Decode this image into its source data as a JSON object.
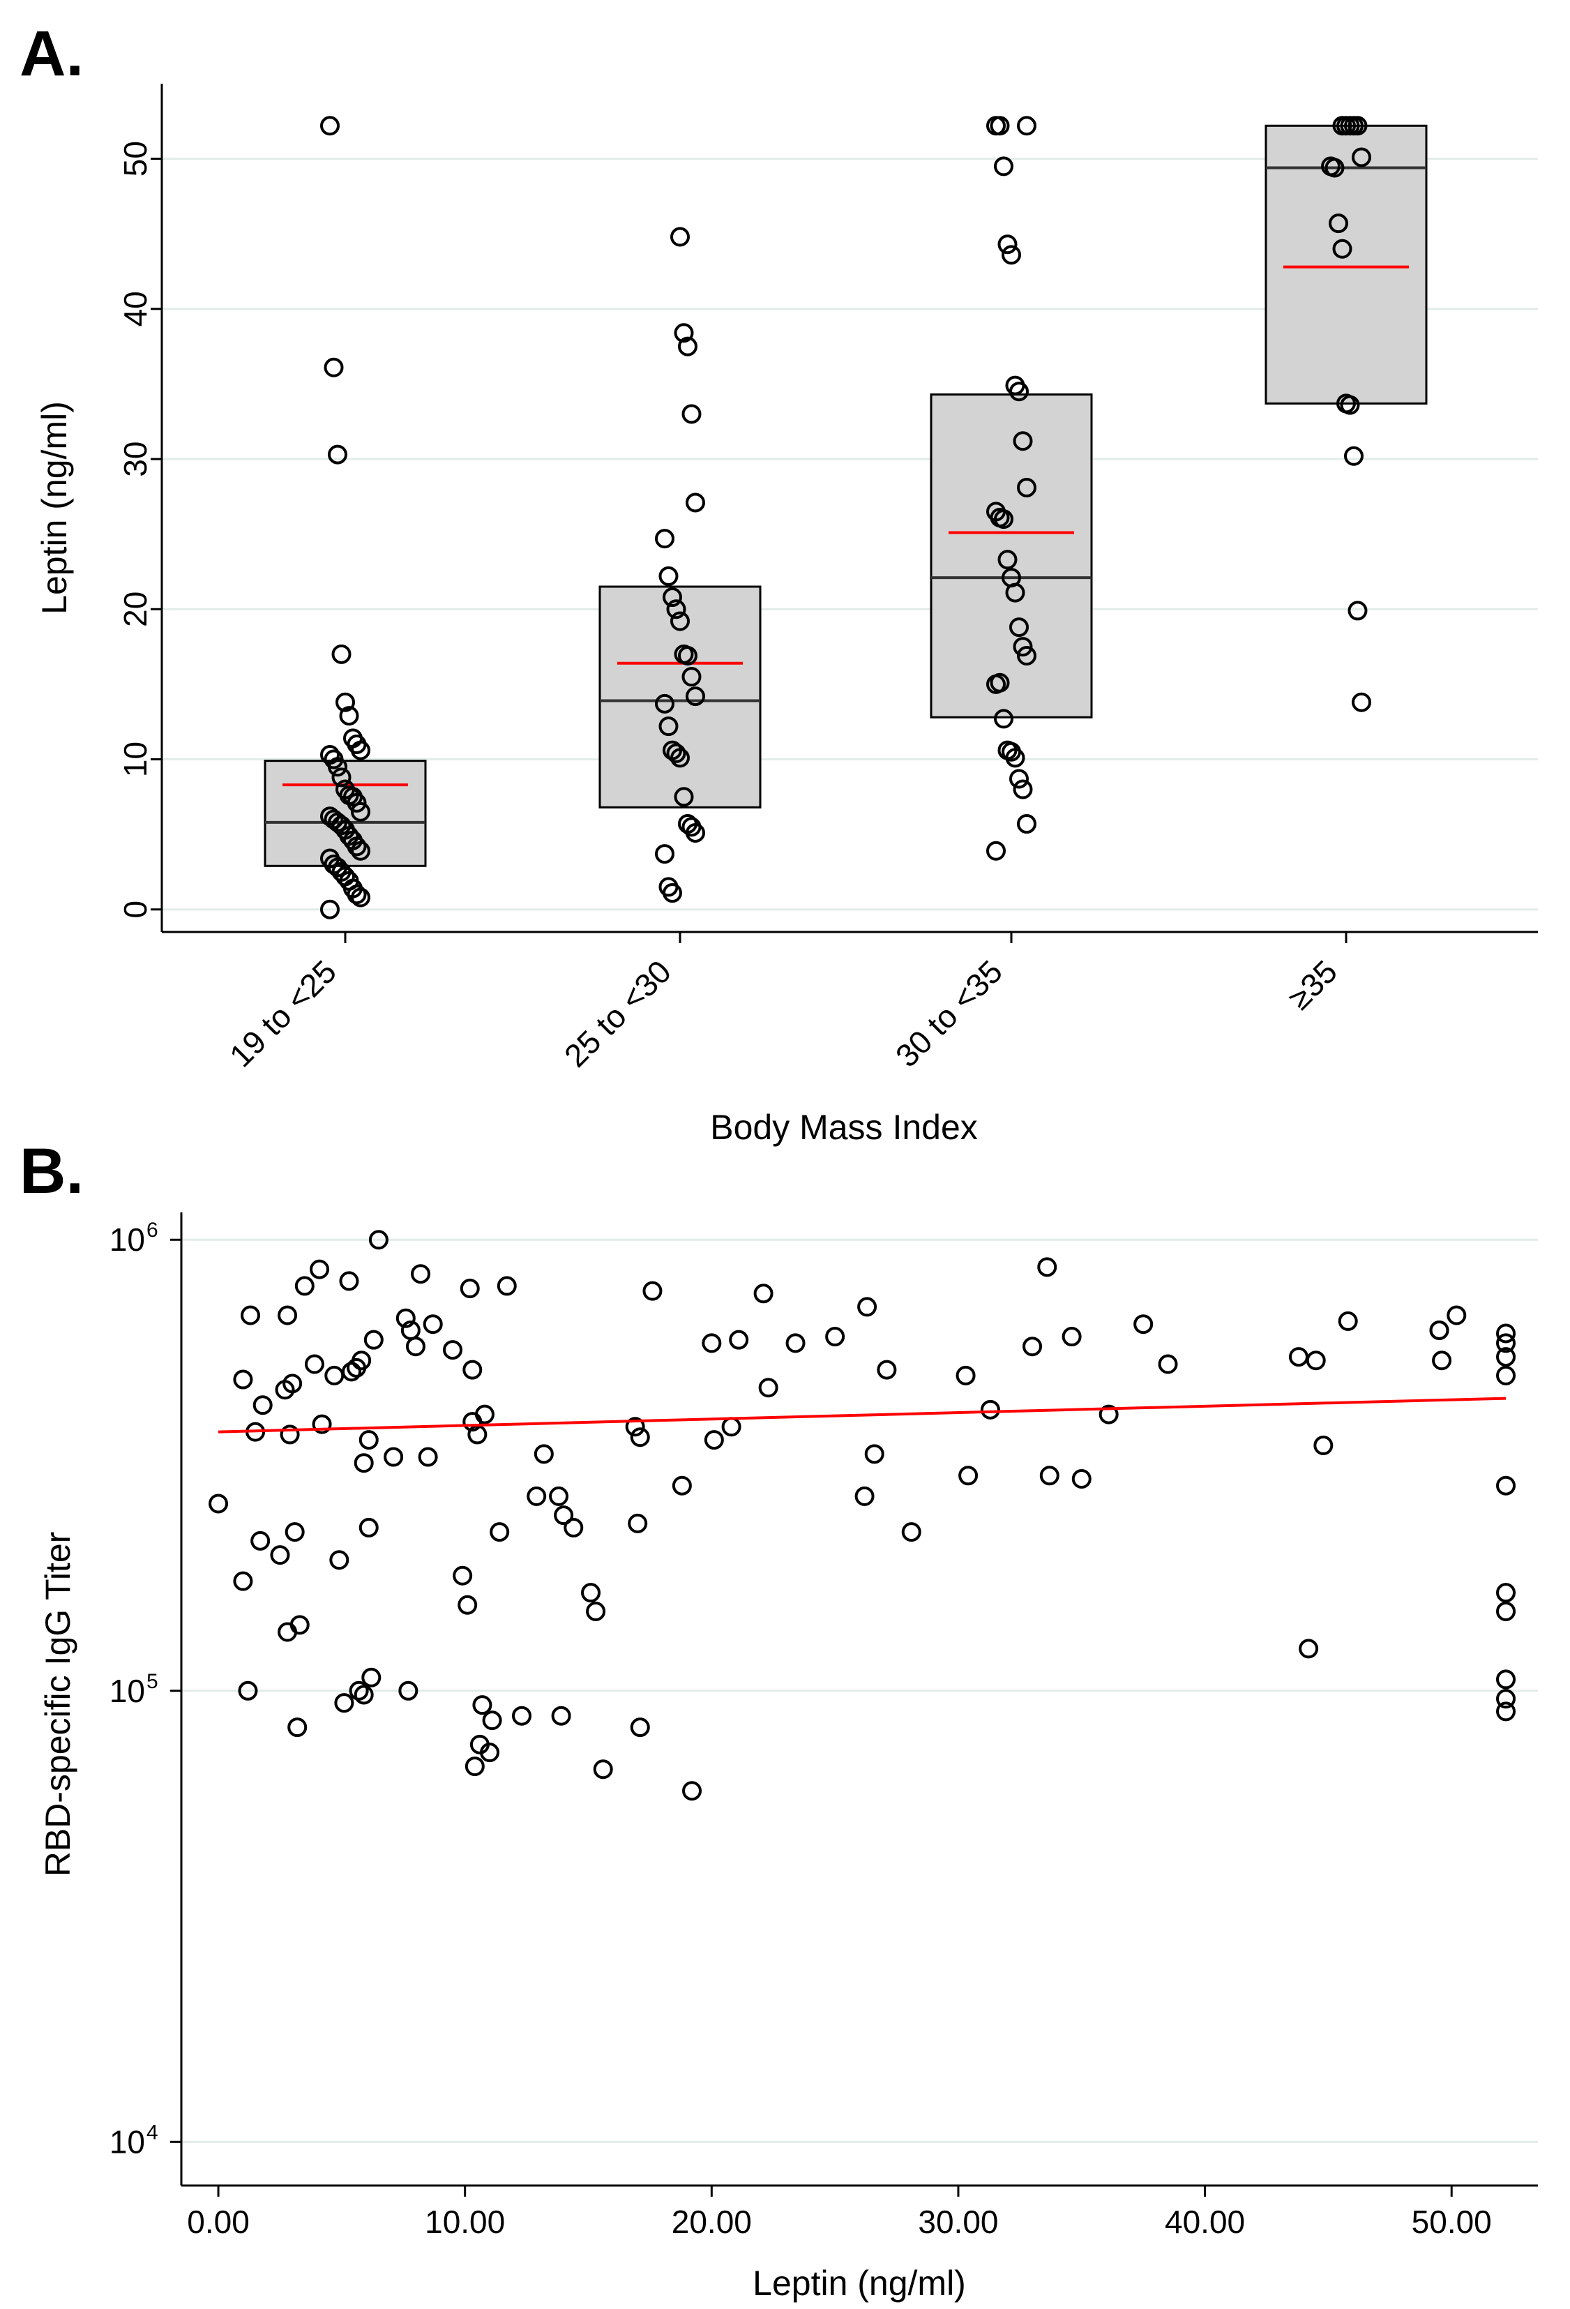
{
  "chart_data": [
    {
      "type": "box",
      "panel_label": "A.",
      "title": "",
      "xlabel": "Body Mass Index",
      "ylabel": "Leptin (ng/ml)",
      "ylim": [
        -1.5,
        55
      ],
      "yticks": [
        0,
        10,
        20,
        30,
        40,
        50
      ],
      "grid": true,
      "categories": [
        "19 to <25",
        "25 to <30",
        "30 to <35",
        "≥35"
      ],
      "boxes": [
        {
          "q1": 2.9,
          "median": 5.8,
          "q3": 9.9,
          "mean": 8.3
        },
        {
          "q1": 6.8,
          "median": 13.9,
          "q3": 21.5,
          "mean": 16.4
        },
        {
          "q1": 12.8,
          "median": 22.1,
          "q3": 34.3,
          "mean": 25.1
        },
        {
          "q1": 33.7,
          "median": 49.4,
          "q3": 52.2,
          "mean": 42.8
        }
      ],
      "points": [
        [
          52.2,
          36.1,
          30.3,
          17.0,
          13.8,
          12.9,
          11.4,
          11.0,
          10.6,
          10.3,
          10.0,
          9.5,
          8.8,
          8.0,
          7.6,
          7.5,
          7.1,
          6.5,
          6.2,
          6.0,
          5.8,
          5.6,
          5.3,
          4.9,
          4.6,
          4.2,
          3.9,
          3.4,
          3.0,
          2.8,
          2.5,
          2.2,
          1.9,
          1.4,
          1.0,
          0.8,
          0.0
        ],
        [
          44.8,
          38.4,
          37.5,
          33.0,
          27.1,
          24.7,
          22.2,
          20.8,
          20.0,
          19.2,
          17.0,
          16.9,
          15.5,
          14.2,
          13.7,
          12.2,
          10.6,
          10.4,
          10.1,
          7.5,
          5.7,
          5.5,
          5.1,
          3.7,
          1.5,
          1.1
        ],
        [
          52.2,
          52.2,
          52.2,
          49.5,
          44.3,
          43.6,
          34.9,
          34.5,
          31.2,
          28.1,
          26.5,
          26.1,
          26.0,
          23.3,
          22.1,
          21.1,
          18.8,
          17.5,
          16.9,
          15.0,
          15.1,
          12.7,
          10.6,
          10.5,
          10.1,
          8.7,
          8.0,
          5.7,
          3.9
        ],
        [
          52.2,
          52.2,
          52.2,
          52.2,
          52.2,
          50.1,
          49.5,
          49.4,
          45.7,
          44.0,
          33.7,
          33.6,
          30.2,
          19.9,
          13.8
        ]
      ]
    },
    {
      "type": "scatter",
      "panel_label": "B.",
      "title": "",
      "xlabel": "Leptin (ng/ml)",
      "ylabel": "RBD-specific IgG Titer",
      "yscale": "log",
      "xlim": [
        -1.5,
        53.5
      ],
      "ylim": [
        8000,
        1150000
      ],
      "xticks": [
        0,
        10,
        20,
        30,
        40,
        50
      ],
      "xtick_labels": [
        "0.00",
        "10.00",
        "20.00",
        "30.00",
        "40.00",
        "50.00"
      ],
      "ytick_labels": [
        {
          "value": 10000,
          "base": "10",
          "exp": "4"
        },
        {
          "value": 100000,
          "base": "10",
          "exp": "5"
        },
        {
          "value": 1000000,
          "base": "10",
          "exp": "6"
        }
      ],
      "grid": true,
      "fit_line": {
        "x": [
          0,
          52.2
        ],
        "y": [
          375000,
          445000
        ]
      },
      "points": [
        [
          0.0,
          260000
        ],
        [
          1.0,
          175000
        ],
        [
          1.0,
          490000
        ],
        [
          1.2,
          100000
        ],
        [
          1.3,
          680000
        ],
        [
          1.5,
          375000
        ],
        [
          1.7,
          215000
        ],
        [
          1.8,
          430000
        ],
        [
          2.5,
          200000
        ],
        [
          2.7,
          465000
        ],
        [
          2.8,
          680000
        ],
        [
          2.8,
          135000
        ],
        [
          2.9,
          370000
        ],
        [
          3.0,
          480000
        ],
        [
          3.1,
          225000
        ],
        [
          3.2,
          83000
        ],
        [
          3.3,
          140000
        ],
        [
          3.5,
          790000
        ],
        [
          3.9,
          530000
        ],
        [
          4.1,
          860000
        ],
        [
          4.2,
          390000
        ],
        [
          4.7,
          500000
        ],
        [
          4.9,
          195000
        ],
        [
          5.1,
          94000
        ],
        [
          5.3,
          810000
        ],
        [
          5.4,
          510000
        ],
        [
          5.6,
          520000
        ],
        [
          5.7,
          100000
        ],
        [
          5.8,
          540000
        ],
        [
          5.9,
          98000
        ],
        [
          5.9,
          320000
        ],
        [
          6.1,
          230000
        ],
        [
          6.1,
          360000
        ],
        [
          6.2,
          107000
        ],
        [
          6.3,
          600000
        ],
        [
          6.5,
          1000000
        ],
        [
          7.1,
          330000
        ],
        [
          7.6,
          670000
        ],
        [
          7.7,
          100000
        ],
        [
          7.8,
          630000
        ],
        [
          8.0,
          580000
        ],
        [
          8.2,
          840000
        ],
        [
          8.5,
          330000
        ],
        [
          8.7,
          650000
        ],
        [
          9.5,
          570000
        ],
        [
          9.9,
          180000
        ],
        [
          10.1,
          155000
        ],
        [
          10.2,
          780000
        ],
        [
          10.3,
          515000
        ],
        [
          10.3,
          395000
        ],
        [
          10.4,
          68000
        ],
        [
          10.5,
          370000
        ],
        [
          10.6,
          76000
        ],
        [
          10.7,
          93000
        ],
        [
          10.8,
          410000
        ],
        [
          11.0,
          73000
        ],
        [
          11.1,
          86000
        ],
        [
          11.4,
          225000
        ],
        [
          11.7,
          790000
        ],
        [
          12.3,
          88000
        ],
        [
          12.9,
          270000
        ],
        [
          13.2,
          335000
        ],
        [
          13.8,
          270000
        ],
        [
          13.9,
          88000
        ],
        [
          14.0,
          245000
        ],
        [
          14.4,
          230000
        ],
        [
          15.1,
          165000
        ],
        [
          15.3,
          150000
        ],
        [
          15.6,
          67000
        ],
        [
          16.9,
          385000
        ],
        [
          17.0,
          235000
        ],
        [
          17.1,
          83000
        ],
        [
          17.1,
          365000
        ],
        [
          17.6,
          770000
        ],
        [
          18.8,
          285000
        ],
        [
          19.2,
          60000
        ],
        [
          20.0,
          590000
        ],
        [
          20.1,
          360000
        ],
        [
          20.8,
          385000
        ],
        [
          21.1,
          600000
        ],
        [
          22.1,
          760000
        ],
        [
          22.3,
          470000
        ],
        [
          23.4,
          590000
        ],
        [
          25.0,
          610000
        ],
        [
          26.2,
          270000
        ],
        [
          26.3,
          710000
        ],
        [
          26.6,
          335000
        ],
        [
          27.1,
          515000
        ],
        [
          28.1,
          225000
        ],
        [
          30.3,
          500000
        ],
        [
          30.4,
          300000
        ],
        [
          31.3,
          420000
        ],
        [
          33.0,
          580000
        ],
        [
          33.6,
          870000
        ],
        [
          33.7,
          300000
        ],
        [
          34.6,
          610000
        ],
        [
          35.0,
          295000
        ],
        [
          36.1,
          410000
        ],
        [
          37.5,
          650000
        ],
        [
          38.5,
          530000
        ],
        [
          43.8,
          550000
        ],
        [
          44.2,
          124000
        ],
        [
          44.5,
          540000
        ],
        [
          44.8,
          350000
        ],
        [
          45.8,
          660000
        ],
        [
          49.5,
          630000
        ],
        [
          49.5,
          630000
        ],
        [
          49.6,
          540000
        ],
        [
          50.2,
          680000
        ],
        [
          52.2,
          620000
        ],
        [
          52.2,
          590000
        ],
        [
          52.2,
          550000
        ],
        [
          52.2,
          500000
        ],
        [
          52.2,
          285000
        ],
        [
          52.2,
          165000
        ],
        [
          52.2,
          150000
        ],
        [
          52.2,
          106000
        ],
        [
          52.2,
          96000
        ],
        [
          52.2,
          90000
        ]
      ]
    }
  ]
}
